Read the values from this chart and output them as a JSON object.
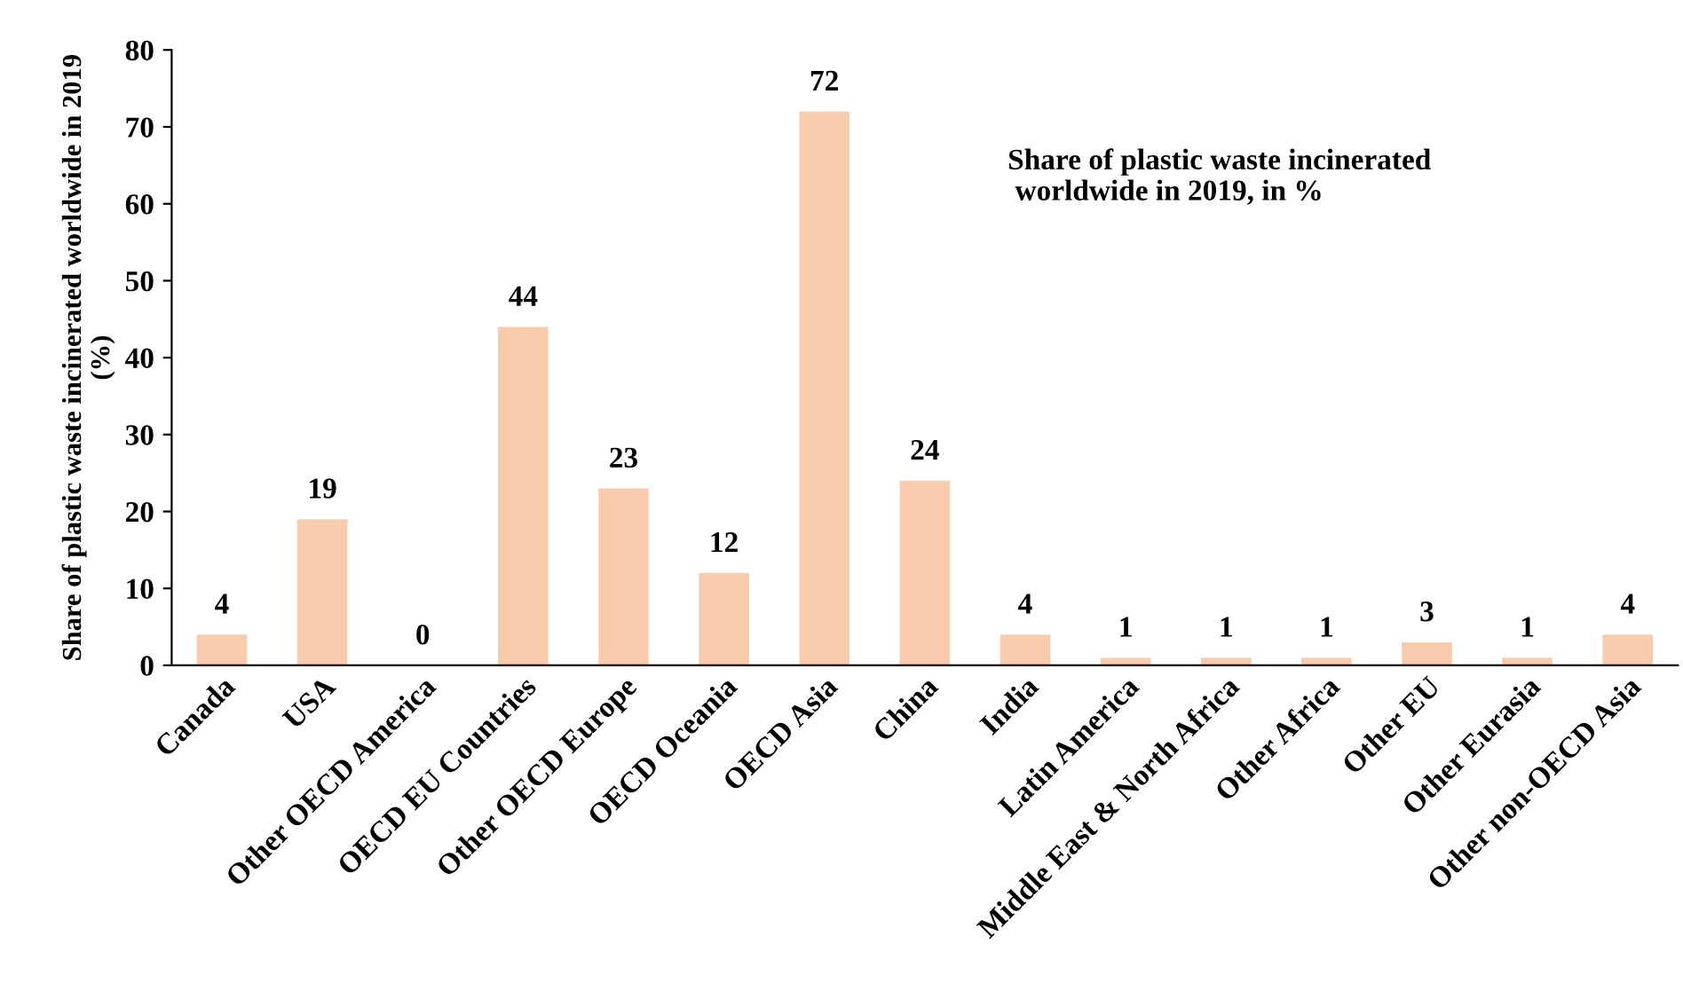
{
  "chart_data": {
    "type": "bar",
    "title": "Share of plastic waste incinerated\n worldwide in 2019, in %",
    "ylabel": "Share of plastic waste incinerated worldwide in 2019\n(%)",
    "categories": [
      "Canada",
      "USA",
      "Other OECD America",
      "OECD EU Countries",
      "Other OECD Europe",
      "OECD Oceania",
      "OECD Asia",
      "China",
      "India",
      "Latin America",
      "Middle East & North Africa",
      "Other Africa",
      "Other EU",
      "Other Eurasia",
      "Other non-OECD Asia"
    ],
    "values": [
      4,
      19,
      0,
      44,
      23,
      12,
      72,
      24,
      4,
      1,
      1,
      1,
      3,
      1,
      4
    ],
    "color": "#f8cbad",
    "ylim": [
      0,
      80
    ],
    "yticks": [
      0,
      10,
      20,
      30,
      40,
      50,
      60,
      70,
      80
    ],
    "data_labels": true,
    "grid": false,
    "legend": false
  }
}
